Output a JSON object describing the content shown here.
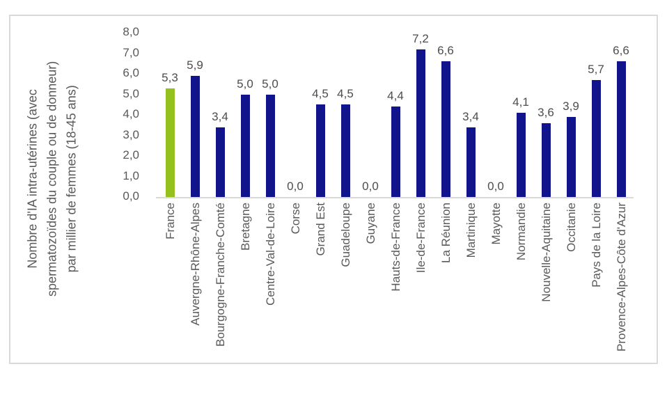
{
  "chart_data": {
    "type": "bar",
    "title": "",
    "y_axis": {
      "title_lines": [
        "Nombre d'IA intra-utérines (avec",
        "spermatozoïdes du couple ou de donneur)",
        "par millier de femmes (18-45 ans)"
      ],
      "min": 0,
      "max": 8,
      "tick_step": 1,
      "ticks": [
        {
          "v": 8,
          "label": "8,0"
        },
        {
          "v": 7,
          "label": "7,0"
        },
        {
          "v": 6,
          "label": "6,0"
        },
        {
          "v": 5,
          "label": "5,0"
        },
        {
          "v": 4,
          "label": "4,0"
        },
        {
          "v": 3,
          "label": "3,0"
        },
        {
          "v": 2,
          "label": "2,0"
        },
        {
          "v": 1,
          "label": "1,0"
        },
        {
          "v": 0,
          "label": "0,0"
        }
      ]
    },
    "categories": [
      "France",
      "Auvergne-Rhône-Alpes",
      "Bourgogne-Franche-Comté",
      "Bretagne",
      "Centre-Val-de-Loire",
      "Corse",
      "Grand Est",
      "Guadeloupe",
      "Guyane",
      "Hauts-de-France",
      "Ile-de-France",
      "La Réunion",
      "Martinique",
      "Mayotte",
      "Normandie",
      "Nouvelle-Aquitaine",
      "Occitanie",
      "Pays de la Loire",
      "Provence-Alpes-Côte d'Azur"
    ],
    "values": [
      5.3,
      5.9,
      3.4,
      5.0,
      5.0,
      0.0,
      4.5,
      4.5,
      0.0,
      4.4,
      7.2,
      6.6,
      3.4,
      0.0,
      4.1,
      3.6,
      3.9,
      5.7,
      6.6
    ],
    "value_labels": [
      "5,3",
      "5,9",
      "3,4",
      "5,0",
      "5,0",
      "0,0",
      "4,5",
      "4,5",
      "0,0",
      "4,4",
      "7,2",
      "6,6",
      "3,4",
      "0,0",
      "4,1",
      "3,6",
      "3,9",
      "5,7",
      "6,6"
    ],
    "highlight_category": "France",
    "highlight_index": 0,
    "colors": {
      "highlight_bar": "#94C11E",
      "default_bar": "#12148C",
      "axis_line": "#D9D9D9",
      "frame_border": "#D9D9D9",
      "tick_text": "#595959",
      "label_text": "#4d4d4d"
    },
    "grid": false,
    "legend": "none"
  }
}
